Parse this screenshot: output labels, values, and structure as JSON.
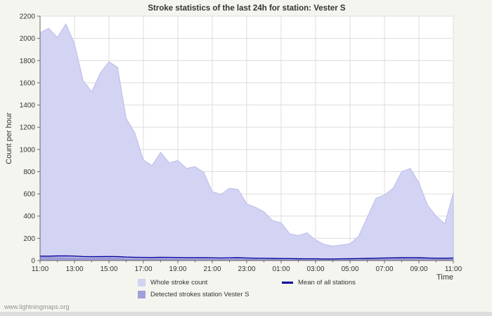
{
  "footer": {
    "watermark": "www.lightningmaps.org"
  },
  "colors": {
    "page_bg": "#f5f5f0",
    "text": "#333333",
    "watermark": "#909090"
  },
  "chart_data": {
    "type": "area",
    "title": "Stroke statistics of the last 24h for station: Vester S",
    "xlabel": "Time",
    "ylabel": "Count per hour",
    "ylim": [
      0,
      2200
    ],
    "ytick_step": 200,
    "grid": true,
    "legend_position": "bottom",
    "plot_bg": "#ffffff",
    "grid_color": "#dcdcdc",
    "axis_color": "#666666",
    "x_start": "11:00",
    "x_interval_minutes": 30,
    "x_tick_labels": [
      "11:00",
      "13:00",
      "15:00",
      "17:00",
      "19:00",
      "21:00",
      "23:00",
      "01:00",
      "03:00",
      "05:00",
      "07:00",
      "09:00",
      "11:00"
    ],
    "series": [
      {
        "name": "Whole stroke count",
        "type": "area",
        "color": "#d3d3f3",
        "edge": "#bcbcea",
        "values": [
          2050,
          2090,
          2010,
          2130,
          1950,
          1620,
          1520,
          1690,
          1790,
          1740,
          1280,
          1150,
          905,
          855,
          975,
          880,
          900,
          830,
          845,
          795,
          620,
          595,
          650,
          640,
          510,
          480,
          440,
          360,
          340,
          240,
          225,
          250,
          185,
          145,
          130,
          140,
          150,
          220,
          390,
          560,
          590,
          650,
          800,
          830,
          700,
          500,
          400,
          330,
          610
        ]
      },
      {
        "name": "Detected strokes station Vester S",
        "type": "area",
        "color": "#9f9fd9",
        "edge": "#8c8cd0",
        "values": [
          30,
          28,
          26,
          25,
          24,
          22,
          20,
          20,
          22,
          21,
          18,
          16,
          15,
          15,
          16,
          15,
          14,
          13,
          13,
          12,
          11,
          10,
          10,
          11,
          10,
          9,
          8,
          8,
          7,
          6,
          6,
          5,
          5,
          4,
          4,
          4,
          5,
          6,
          8,
          10,
          12,
          13,
          14,
          15,
          14,
          12,
          10,
          10,
          12
        ]
      },
      {
        "name": "Mean of all stations",
        "type": "line",
        "color": "#000099",
        "values": [
          40,
          39,
          41,
          42,
          40,
          36,
          34,
          35,
          36,
          35,
          31,
          29,
          28,
          27,
          29,
          28,
          27,
          26,
          26,
          25,
          24,
          23,
          24,
          25,
          23,
          21,
          20,
          19,
          18,
          17,
          16,
          15,
          15,
          14,
          14,
          15,
          16,
          17,
          19,
          21,
          23,
          24,
          25,
          26,
          25,
          23,
          21,
          21,
          23
        ]
      }
    ]
  }
}
